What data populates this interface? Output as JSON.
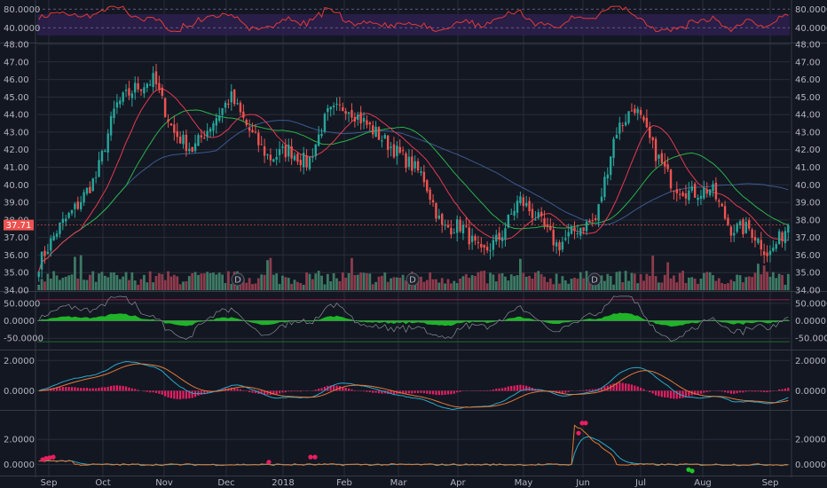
{
  "colors": {
    "background": "#131722",
    "grid": "#2a2e39",
    "candle_up": "#26a69a",
    "candle_down": "#ef5350",
    "vol_up": "#3d7a64",
    "vol_down": "#8e3b4c",
    "rsi_band": "#2b1f4d",
    "rsi_line": "#e53935",
    "ma_fast": "#e53950",
    "ma_mid": "#29b34a",
    "ma_slow": "#3a5a8c",
    "price_tag": "#ef5350",
    "osc_fill": "#22c32a",
    "macd_line": "#2aa8c8",
    "signal_line": "#e07a3a",
    "hist": "#e91e63",
    "ind_line": "#e0782f",
    "ind_line2": "#2aa8c8",
    "marker": "#e91e63",
    "marker_down": "#22c32a"
  },
  "ui": {
    "rsi_ticks": [
      "80.0000",
      "40.0000"
    ],
    "price_ticks": [
      "48.00",
      "47.00",
      "46.00",
      "45.00",
      "44.00",
      "43.00",
      "42.00",
      "41.00",
      "40.00",
      "39.00",
      "38.00",
      "37.00",
      "36.00",
      "35.00",
      "34.00"
    ],
    "current_price": "37.71",
    "osc_ticks": [
      "50.0000",
      "0.0000",
      "-50.0000"
    ],
    "macd_ticks": [
      "2.0000",
      "0.0000"
    ],
    "ind_ticks": [
      "2.0000",
      "0.0000"
    ],
    "x_ticks": [
      "Sep",
      "Oct",
      "Nov",
      "Dec",
      "2018",
      "Feb",
      "Mar",
      "Apr",
      "May",
      "Jun",
      "Jul",
      "Aug",
      "Sep"
    ],
    "dividend_label": "D"
  },
  "chart_data": {
    "type": "candlestick",
    "price_range": [
      34,
      48
    ],
    "current_price": 37.71,
    "x_ticks": [
      "Sep",
      "Oct",
      "Nov",
      "Dec",
      "2018",
      "Feb",
      "Mar",
      "Apr",
      "May",
      "Jun",
      "Jul",
      "Aug",
      "Sep"
    ],
    "price_path_keypoints": [
      [
        "Sep",
        35.5
      ],
      [
        "Sep",
        37.5
      ],
      [
        "Sep",
        38.8
      ],
      [
        "Oct",
        40.5
      ],
      [
        "Oct",
        44.5
      ],
      [
        "Oct",
        45.5
      ],
      [
        "Oct",
        46.0
      ],
      [
        "Nov",
        43.0
      ],
      [
        "Nov",
        42.0
      ],
      [
        "Nov",
        43.5
      ],
      [
        "Nov",
        45.0
      ],
      [
        "Dec",
        43.0
      ],
      [
        "Dec",
        41.5
      ],
      [
        "Dec",
        42.0
      ],
      [
        "2018",
        41.2
      ],
      [
        "2018",
        44.0
      ],
      [
        "2018",
        44.5
      ],
      [
        "2018",
        43.5
      ],
      [
        "Feb",
        42.5
      ],
      [
        "Feb",
        41.5
      ],
      [
        "Feb",
        40.5
      ],
      [
        "Mar",
        37.5
      ],
      [
        "Mar",
        37.7
      ],
      [
        "Mar",
        36.0
      ],
      [
        "Apr",
        37.0
      ],
      [
        "Apr",
        39.2
      ],
      [
        "Apr",
        38.0
      ],
      [
        "May",
        36.5
      ],
      [
        "May",
        37.5
      ],
      [
        "May",
        38.0
      ],
      [
        "Jun",
        43.0
      ],
      [
        "Jun",
        44.5
      ],
      [
        "Jun",
        42.0
      ],
      [
        "Jul",
        40.0
      ],
      [
        "Jul",
        39.5
      ],
      [
        "Jul",
        39.8
      ],
      [
        "Aug",
        37.5
      ],
      [
        "Aug",
        37.5
      ],
      [
        "Aug",
        36.0
      ],
      [
        "Sep",
        37.71
      ]
    ],
    "dividend_markers": [
      "D",
      "D",
      "D"
    ]
  }
}
